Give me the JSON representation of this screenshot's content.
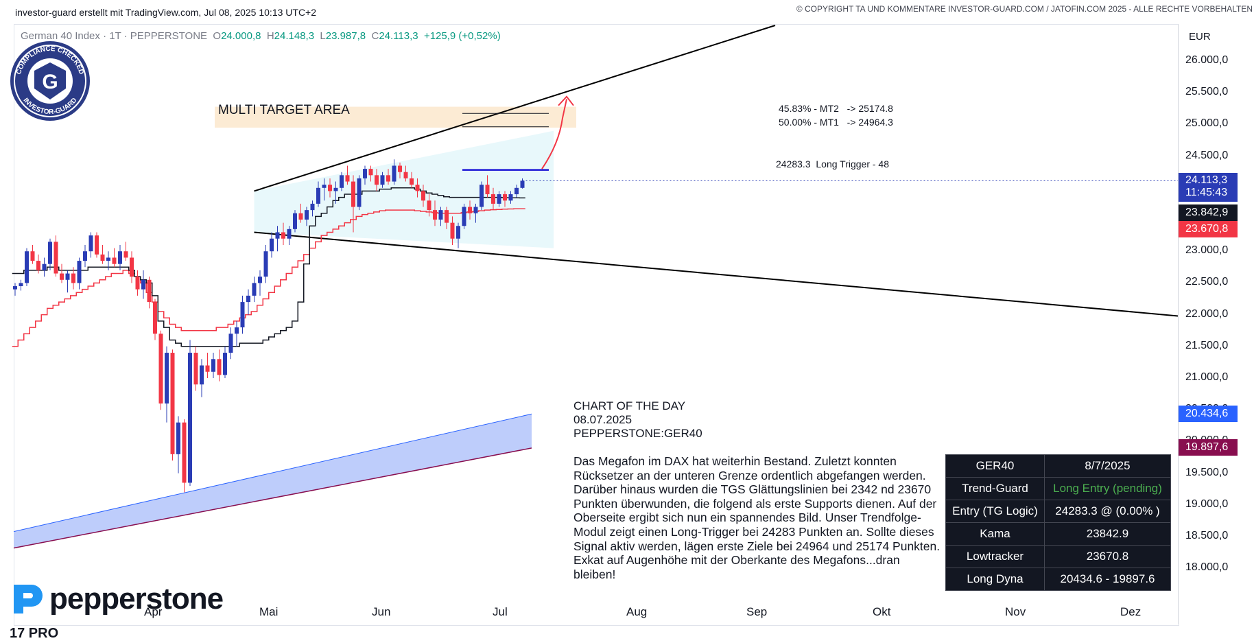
{
  "header": {
    "left": "investor-guard erstellt mit TradingView.com, Jul 08, 2025 10:13 UTC+2",
    "right": "© COPYRIGHT TA UND KOMMENTARE INVESTOR-GUARD.COM / JATOFIN.COM 2025 - ALLE RECHTE VORBEHALTEN"
  },
  "symbol": {
    "name": "German 40 Index · 1T · PEPPERSTONE",
    "o_label": "O",
    "o": "24.000,8",
    "h_label": "H",
    "h": "24.148,3",
    "l_label": "L",
    "l": "23.987,8",
    "c_label": "C",
    "c": "24.113,3",
    "change": "+125,9 (+0,52%)"
  },
  "badge": {
    "top": "COMPLIANCE CHECKED",
    "bottom": "INVESTOR-GUARD",
    "letter": "G"
  },
  "annotations": {
    "target_area": "MULTI TARGET AREA",
    "mt2": "45.83% - MT2   -> 25174.8",
    "mt1": "50.00% - MT1   -> 24964.3",
    "trigger": "24283.3  Long Trigger - 48"
  },
  "cotd": {
    "line1": "CHART OF THE DAY",
    "line2": "08.07.2025",
    "line3": "PEPPERSTONE:GER40"
  },
  "commentary": "Das Megafon im DAX hat weiterhin Bestand. Zuletzt konnten Rücksetzer an der unteren Grenze ordentlich abgefangen werden. Darüber hinaus wurden die TGS Glättungslinien bei 2342 nd 23670 Punkten überwunden, die folgend als erste Supports dienen. Auf der Oberseite ergibt sich nun ein spannendes Bild. Unser Trendfolge-Modul zeigt einen Long-Trigger bei 24283 Punkten an. Sollte dieses Signal aktiv werden, lägen erste Ziele bei 24964 und 25174 Punkten. Exkat auf Augenhöhe mit der Oberkante des Megafons...dran bleiben!",
  "table": {
    "rows": [
      {
        "k": "GER40",
        "v": "8/7/2025"
      },
      {
        "k": "Trend-Guard",
        "v": "Long Entry (pending)"
      },
      {
        "k": "Entry (TG Logic)",
        "v": "24283.3 @ (0.00% )"
      },
      {
        "k": "Kama",
        "v": "23842.9"
      },
      {
        "k": "Lowtracker",
        "v": "23670.8"
      },
      {
        "k": "Long Dyna",
        "v": "20434.6 - 19897.6"
      }
    ],
    "highlight_color": "#4caf50"
  },
  "price_boxes": {
    "last": "24.113,3",
    "countdown": "11:45:43",
    "kama": "23.842,9",
    "lowtracker": "23.670,8",
    "dyna_upper": "20.434,6",
    "dyna_lower": "19.897,6"
  },
  "logo": {
    "text": "pepperstone",
    "tv": "17 PRO"
  },
  "colors": {
    "up": "#2a3cb5",
    "down": "#f23645",
    "kama": "#131722",
    "lowtracker": "#f23645",
    "trigger": "#1a16d6"
  },
  "chart_data": {
    "type": "candlestick",
    "currency": "EUR",
    "ylim": [
      17700,
      26400
    ],
    "y_ticks": [
      "26.000,0",
      "25.500,0",
      "25.000,0",
      "24.500,0",
      "24.000,0",
      "23.500,0",
      "23.000,0",
      "22.500,0",
      "22.000,0",
      "21.500,0",
      "21.000,0",
      "20.500,0",
      "20.000,0",
      "19.500,0",
      "19.000,0",
      "18.500,0",
      "18.000,0"
    ],
    "x_ticks": [
      "Apr",
      "Mai",
      "Jun",
      "Jul",
      "Aug",
      "Sep",
      "Okt",
      "Nov",
      "Dez"
    ],
    "long_trigger": 24283.3,
    "mt1": 24964.3,
    "mt2": 25174.8,
    "candles": [
      [
        22400,
        22500,
        22300,
        22450
      ],
      [
        22450,
        22550,
        22380,
        22500
      ],
      [
        22500,
        23050,
        22450,
        23000
      ],
      [
        23000,
        23100,
        22800,
        22850
      ],
      [
        22850,
        22950,
        22650,
        22700
      ],
      [
        22700,
        22900,
        22600,
        22800
      ],
      [
        22800,
        23200,
        22700,
        23150
      ],
      [
        23150,
        23250,
        22600,
        22650
      ],
      [
        22650,
        22800,
        22500,
        22550
      ],
      [
        22550,
        22700,
        22350,
        22650
      ],
      [
        22650,
        22750,
        22400,
        22500
      ],
      [
        22500,
        22900,
        22400,
        22850
      ],
      [
        22850,
        23100,
        22750,
        23000
      ],
      [
        23000,
        23300,
        22900,
        23250
      ],
      [
        23250,
        23300,
        22900,
        22950
      ],
      [
        22950,
        23100,
        22800,
        22850
      ],
      [
        22850,
        23000,
        22700,
        22900
      ],
      [
        22900,
        23050,
        22750,
        22800
      ],
      [
        22800,
        23100,
        22700,
        23000
      ],
      [
        23000,
        23150,
        22850,
        22900
      ],
      [
        22900,
        23000,
        22500,
        22600
      ],
      [
        22600,
        22700,
        22300,
        22400
      ],
      [
        22400,
        22700,
        22250,
        22550
      ],
      [
        22550,
        22600,
        22100,
        22200
      ],
      [
        22200,
        22250,
        21600,
        21700
      ],
      [
        21700,
        21750,
        20500,
        20600
      ],
      [
        20600,
        21500,
        20300,
        21400
      ],
      [
        21400,
        21450,
        19700,
        19800
      ],
      [
        19800,
        20400,
        19500,
        20300
      ],
      [
        20300,
        20350,
        19200,
        19350
      ],
      [
        19350,
        21600,
        19300,
        21400
      ],
      [
        21400,
        21500,
        20800,
        20900
      ],
      [
        20900,
        21300,
        20700,
        21200
      ],
      [
        21200,
        21400,
        21000,
        21100
      ],
      [
        21100,
        21400,
        21000,
        21300
      ],
      [
        21300,
        21450,
        20950,
        21050
      ],
      [
        21050,
        21500,
        21000,
        21400
      ],
      [
        21400,
        21800,
        21300,
        21700
      ],
      [
        21700,
        21900,
        21500,
        21800
      ],
      [
        21800,
        22300,
        21700,
        22200
      ],
      [
        22200,
        22400,
        22000,
        22300
      ],
      [
        22300,
        22600,
        22200,
        22500
      ],
      [
        22500,
        22700,
        22300,
        22600
      ],
      [
        22600,
        23100,
        22500,
        23000
      ],
      [
        23000,
        23300,
        22900,
        23200
      ],
      [
        23200,
        23400,
        23000,
        23300
      ],
      [
        23300,
        23450,
        23100,
        23200
      ],
      [
        23200,
        23400,
        23100,
        23350
      ],
      [
        23350,
        23650,
        23300,
        23600
      ],
      [
        23600,
        23750,
        23450,
        23500
      ],
      [
        23500,
        23700,
        23400,
        23650
      ],
      [
        23650,
        23800,
        23550,
        23750
      ],
      [
        23750,
        24100,
        23700,
        24000
      ],
      [
        24000,
        24150,
        23800,
        24050
      ],
      [
        24050,
        24150,
        23850,
        23950
      ],
      [
        23950,
        24100,
        23750,
        24000
      ],
      [
        24000,
        24250,
        23950,
        24200
      ],
      [
        24200,
        24350,
        24050,
        24100
      ],
      [
        24100,
        24200,
        23300,
        23700
      ],
      [
        23700,
        24200,
        23650,
        24150
      ],
      [
        24150,
        24350,
        24050,
        24300
      ],
      [
        24300,
        24350,
        24100,
        24200
      ],
      [
        24200,
        24300,
        23950,
        24050
      ],
      [
        24050,
        24250,
        24000,
        24200
      ],
      [
        24200,
        24300,
        24050,
        24100
      ],
      [
        24100,
        24450,
        24050,
        24350
      ],
      [
        24350,
        24400,
        24150,
        24250
      ],
      [
        24250,
        24350,
        24100,
        24150
      ],
      [
        24150,
        24250,
        24000,
        24050
      ],
      [
        24050,
        24150,
        23850,
        23950
      ],
      [
        23950,
        24050,
        23700,
        23800
      ],
      [
        23800,
        23900,
        23550,
        23650
      ],
      [
        23650,
        23800,
        23400,
        23500
      ],
      [
        23500,
        23700,
        23400,
        23650
      ],
      [
        23650,
        23700,
        23350,
        23450
      ],
      [
        23450,
        23550,
        23100,
        23200
      ],
      [
        23200,
        23450,
        23050,
        23400
      ],
      [
        23400,
        23750,
        23350,
        23700
      ],
      [
        23700,
        23800,
        23500,
        23600
      ],
      [
        23600,
        23750,
        23450,
        23700
      ],
      [
        23700,
        24100,
        23650,
        24050
      ],
      [
        24050,
        24200,
        23850,
        23900
      ],
      [
        23900,
        24000,
        23650,
        23750
      ],
      [
        23750,
        23950,
        23700,
        23900
      ],
      [
        23900,
        23950,
        23700,
        23800
      ],
      [
        23800,
        23950,
        23750,
        23900
      ],
      [
        23900,
        24050,
        23850,
        24000
      ],
      [
        24000,
        24150,
        23990,
        24113
      ]
    ],
    "kama": [
      22650,
      22650,
      22700,
      22700,
      22700,
      22700,
      22750,
      22750,
      22700,
      22700,
      22700,
      22700,
      22700,
      22750,
      22750,
      22750,
      22750,
      22750,
      22750,
      22750,
      22700,
      22600,
      22550,
      22500,
      22300,
      21900,
      21800,
      21600,
      21550,
      21500,
      21500,
      21500,
      21500,
      21500,
      21500,
      21500,
      21500,
      21500,
      21500,
      21550,
      21550,
      21550,
      21550,
      21600,
      21650,
      21700,
      21750,
      21800,
      21900,
      22200,
      22800,
      23400,
      23550,
      23600,
      23700,
      23800,
      23850,
      23900,
      23900,
      23900,
      23950,
      23950,
      23950,
      23980,
      23980,
      24000,
      24000,
      24000,
      24000,
      23980,
      23950,
      23920,
      23900,
      23880,
      23860,
      23850,
      23850,
      23850,
      23850,
      23850,
      23850,
      23850,
      23850,
      23850,
      23845,
      23843,
      23843,
      23842.9
    ],
    "lowtracker": [
      21500,
      21600,
      21700,
      21800,
      21900,
      22000,
      22100,
      22150,
      22200,
      22250,
      22300,
      22350,
      22400,
      22450,
      22500,
      22550,
      22600,
      22650,
      22650,
      22700,
      22650,
      22600,
      22500,
      22350,
      22200,
      22050,
      21950,
      21850,
      21800,
      21750,
      21750,
      21750,
      21750,
      21750,
      21750,
      21800,
      21800,
      21850,
      21900,
      21950,
      22000,
      22050,
      22150,
      22250,
      22350,
      22450,
      22550,
      22650,
      22750,
      22850,
      22950,
      23050,
      23150,
      23250,
      23300,
      23350,
      23400,
      23450,
      23500,
      23550,
      23580,
      23600,
      23620,
      23640,
      23650,
      23650,
      23650,
      23650,
      23650,
      23640,
      23630,
      23620,
      23610,
      23600,
      23600,
      23600,
      23600,
      23610,
      23620,
      23630,
      23640,
      23650,
      23655,
      23660,
      23665,
      23668,
      23670,
      23670.8
    ],
    "dyna_upper_end": 20434.6,
    "dyna_lower_end": 19897.6
  }
}
